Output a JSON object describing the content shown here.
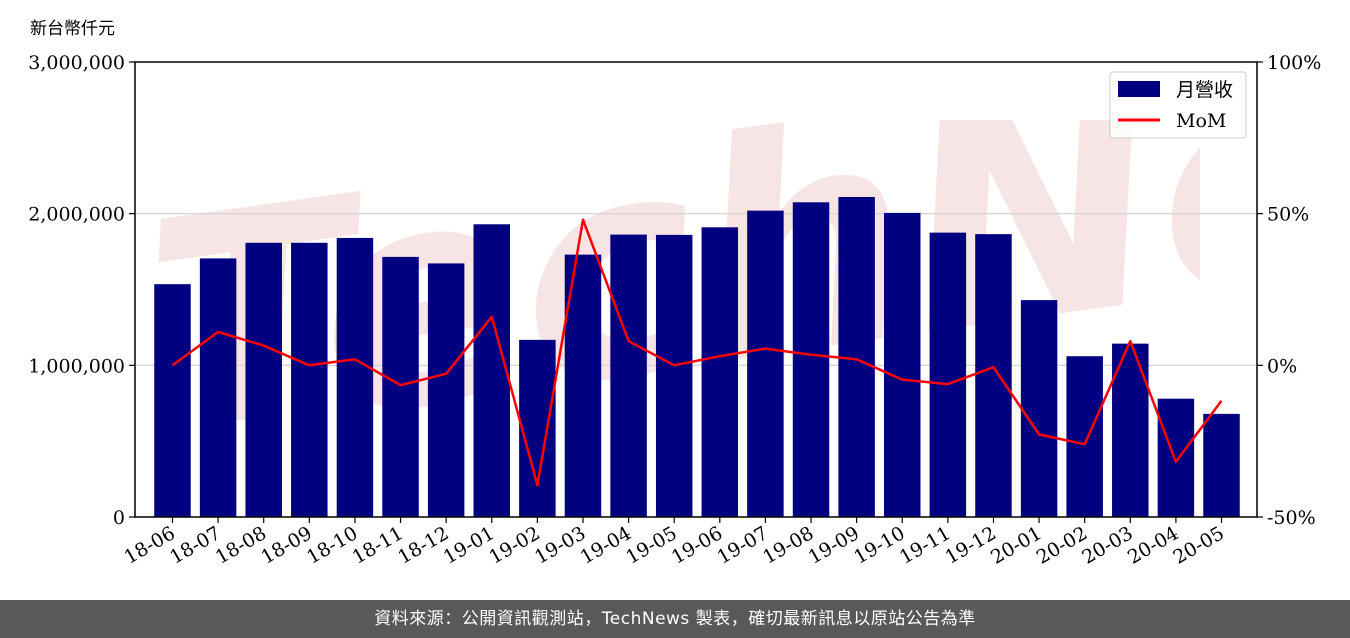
{
  "unit_label": "新台幣仟元",
  "footer_text": "資料來源：公開資訊觀測站，TechNews 製表，確切最新訊息以原站公告為準",
  "watermark_text": "TechNews",
  "colors": {
    "bar": "#000080",
    "line": "#ff0000",
    "grid": "#d0d0d0",
    "watermark": "#f2d4d4",
    "footer_bg": "#595959"
  },
  "chart_data": {
    "type": "bar",
    "categories": [
      "18-06",
      "18-07",
      "18-08",
      "18-09",
      "18-10",
      "18-11",
      "18-12",
      "19-01",
      "19-02",
      "19-03",
      "19-04",
      "19-05",
      "19-06",
      "19-07",
      "19-08",
      "19-09",
      "19-10",
      "19-11",
      "19-12",
      "20-01",
      "20-02",
      "20-03",
      "20-04",
      "20-05"
    ],
    "series": [
      {
        "name": "月營收",
        "type": "bar",
        "axis": "left",
        "values": [
          1535000,
          1705000,
          1808000,
          1808000,
          1840000,
          1715000,
          1672000,
          1930000,
          1168000,
          1730000,
          1862000,
          1860000,
          1910000,
          2020000,
          2075000,
          2110000,
          2005000,
          1875000,
          1865000,
          1430000,
          1060000,
          1143000,
          780000,
          680000
        ]
      },
      {
        "name": "MoM",
        "type": "line",
        "axis": "right",
        "values": [
          0.0,
          11.0,
          6.5,
          0.0,
          2.0,
          -6.5,
          -2.8,
          16.0,
          -39.5,
          48.0,
          8.0,
          0.0,
          3.0,
          5.5,
          3.5,
          2.0,
          -4.7,
          -6.2,
          -0.6,
          -22.8,
          -26.0,
          8.0,
          -31.8,
          -11.7
        ]
      }
    ],
    "ylim_left": [
      0,
      3000000
    ],
    "yticks_left": [
      "0",
      "1,000,000",
      "2,000,000",
      "3,000,000"
    ],
    "ytick_values_left": [
      0,
      1000000,
      2000000,
      3000000
    ],
    "ylim_right": [
      -50,
      100
    ],
    "yticks_right": [
      "-50%",
      "0%",
      "50%",
      "100%"
    ],
    "ytick_values_right": [
      -50,
      0,
      50,
      100
    ],
    "grid": "horizontal",
    "legend_position": "top-right",
    "legend": [
      "月營收",
      "MoM"
    ]
  }
}
